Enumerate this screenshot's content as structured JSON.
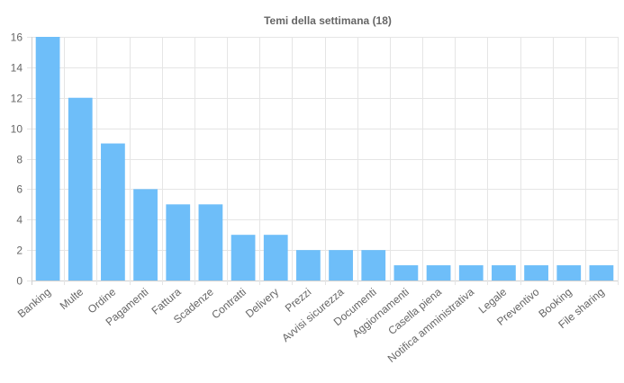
{
  "chart_data": {
    "type": "bar",
    "title": "Temi della settimana (18)",
    "categories": [
      "Banking",
      "Multe",
      "Ordine",
      "Pagamenti",
      "Fattura",
      "Scadenze",
      "Contratti",
      "Delivery",
      "Prezzi",
      "Avvisi sicurezza",
      "Documenti",
      "Aggiornamenti",
      "Casella piena",
      "Notifica amministrativa",
      "Legale",
      "Preventivo",
      "Booking",
      "File sharing"
    ],
    "values": [
      16,
      12,
      9,
      6,
      5,
      5,
      3,
      3,
      2,
      2,
      2,
      1,
      1,
      1,
      1,
      1,
      1,
      1
    ],
    "ylim": [
      0,
      16
    ],
    "yticks": [
      "0",
      "2",
      "4",
      "6",
      "8",
      "10",
      "12",
      "14",
      "16"
    ],
    "grid": true,
    "legend": "none",
    "bar_color": "#6ebef9"
  }
}
